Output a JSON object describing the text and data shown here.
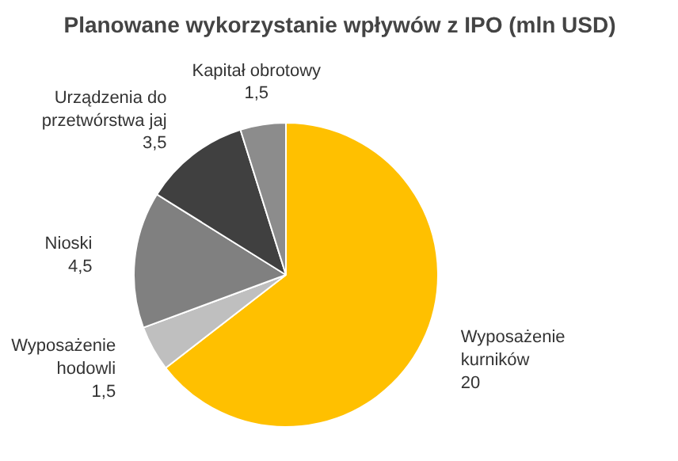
{
  "chart_data": {
    "type": "pie",
    "title": "Planowane wykorzystanie wpływów z IPO (mln USD)",
    "categories": [
      "Wyposażenie\nkurników",
      "Wyposażenie\nhodowli",
      "Nioski",
      "Urządzenia do\nprzetwórstwa jaj",
      "Kapitał obrotowy"
    ],
    "values": [
      20,
      1.5,
      4.5,
      3.5,
      1.5
    ],
    "value_labels": [
      "20",
      "1,5",
      "4,5",
      "3,5",
      "1,5"
    ],
    "colors": [
      "#ffc000",
      "#bfbfbf",
      "#808080",
      "#404040",
      "#8c8c8c"
    ]
  }
}
